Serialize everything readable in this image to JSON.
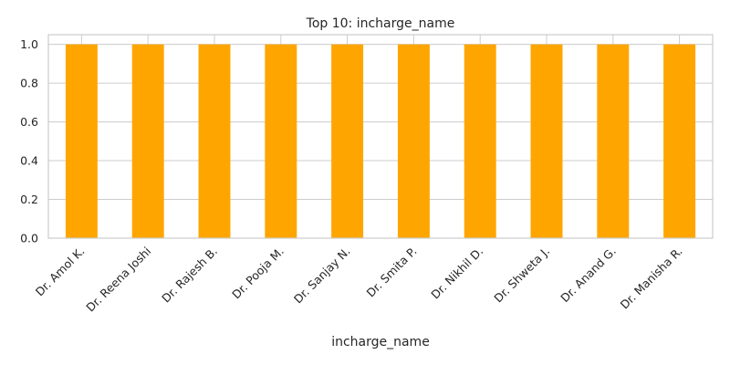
{
  "chart_data": {
    "type": "bar",
    "title": "Top 10: incharge_name",
    "xlabel": "incharge_name",
    "ylabel": "",
    "categories": [
      "Dr. Amol K.",
      "Dr. Reena Joshi",
      "Dr. Rajesh B.",
      "Dr. Pooja M.",
      "Dr. Sanjay N.",
      "Dr. Smita P.",
      "Dr. Nikhil D.",
      "Dr. Shweta J.",
      "Dr. Anand G.",
      "Dr. Manisha R."
    ],
    "values": [
      1,
      1,
      1,
      1,
      1,
      1,
      1,
      1,
      1,
      1
    ],
    "ylim": [
      0,
      1.05
    ],
    "yticks": [
      "0.0",
      "0.2",
      "0.4",
      "0.6",
      "0.8",
      "1.0"
    ],
    "grid": true,
    "bar_color": "#ffa500",
    "grid_color": "#cccccc"
  }
}
